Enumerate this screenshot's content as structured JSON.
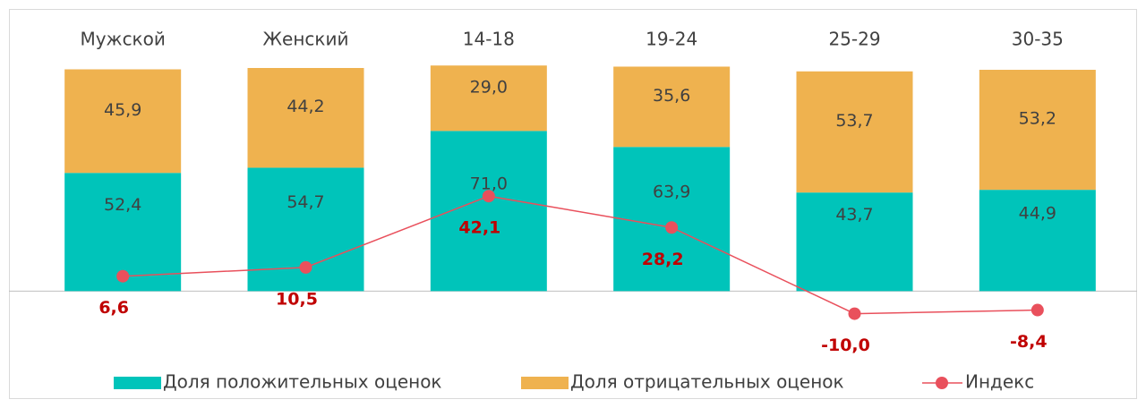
{
  "chart_data": {
    "type": "bar",
    "stacked": true,
    "categories": [
      "Мужской",
      "Женский",
      "14-18",
      "19-24",
      "25-29",
      "30-35"
    ],
    "series": [
      {
        "name": "Доля положительных оценок",
        "color": "#00c4ba",
        "values": [
          52.4,
          54.7,
          71.0,
          63.9,
          43.7,
          44.9
        ],
        "value_labels": [
          "52,4",
          "54,7",
          "71,0",
          "63,9",
          "43,7",
          "44,9"
        ]
      },
      {
        "name": "Доля отрицательных оценок",
        "color": "#efb24f",
        "values": [
          45.9,
          44.2,
          29.0,
          35.6,
          53.7,
          53.2
        ],
        "value_labels": [
          "45,9",
          "44,2",
          "29,0",
          "35,6",
          "53,7",
          "53,2"
        ]
      },
      {
        "name": "Индекс",
        "type": "line",
        "color": "#e9505c",
        "label_color": "#c00000",
        "values": [
          6.6,
          10.5,
          42.1,
          28.2,
          -10.0,
          -8.4
        ],
        "value_labels": [
          "6,6",
          "10,5",
          "42,1",
          "28,2",
          "-10,0",
          "-8,4"
        ]
      }
    ],
    "ylim": [
      -30,
      110
    ],
    "legend": "bottom"
  }
}
